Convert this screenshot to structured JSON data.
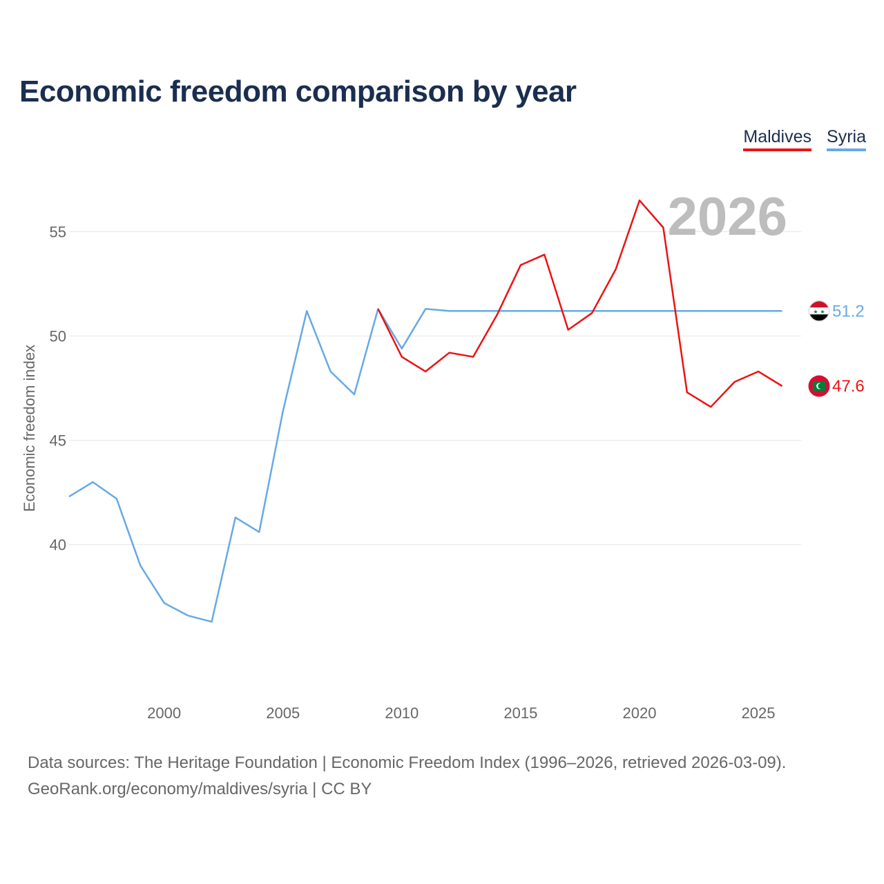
{
  "colors": {
    "maldives": "#ee1111",
    "syria": "#66a9e6",
    "grid": "#e6e6e6",
    "title": "#1a2e4f"
  },
  "title": "Economic freedom comparison by year",
  "legend": [
    {
      "label": "Maldives",
      "color": "#ee1111"
    },
    {
      "label": "Syria",
      "color": "#66a9e6"
    }
  ],
  "chart_data": {
    "type": "line",
    "title": "Economic freedom comparison by year",
    "xlabel": "",
    "ylabel": "Economic freedom index",
    "xlim": [
      1996,
      2026.8
    ],
    "ylim": [
      33,
      57.5
    ],
    "yticks": [
      40,
      45,
      50,
      55
    ],
    "xticks": [
      2000,
      2005,
      2010,
      2015,
      2020,
      2025
    ],
    "year_watermark": "2026",
    "series": [
      {
        "name": "Syria",
        "color": "#66a9e6",
        "end_label": "51.2",
        "end_value": 51.2,
        "points": [
          [
            1996,
            42.3
          ],
          [
            1997,
            43.0
          ],
          [
            1998,
            42.2
          ],
          [
            1999,
            39.0
          ],
          [
            2000,
            37.2
          ],
          [
            2001,
            36.6
          ],
          [
            2002,
            36.3
          ],
          [
            2003,
            41.3
          ],
          [
            2004,
            40.6
          ],
          [
            2005,
            46.4
          ],
          [
            2006,
            51.2
          ],
          [
            2007,
            48.3
          ],
          [
            2008,
            47.2
          ],
          [
            2009,
            51.3
          ],
          [
            2010,
            49.4
          ],
          [
            2011,
            51.3
          ],
          [
            2012,
            51.2
          ],
          [
            2026,
            51.2
          ]
        ]
      },
      {
        "name": "Maldives",
        "color": "#ee1111",
        "end_label": "47.6",
        "end_value": 47.6,
        "points": [
          [
            2009,
            51.3
          ],
          [
            2010,
            49.0
          ],
          [
            2011,
            48.3
          ],
          [
            2012,
            49.2
          ],
          [
            2013,
            49.0
          ],
          [
            2014,
            51.0
          ],
          [
            2015,
            53.4
          ],
          [
            2016,
            53.9
          ],
          [
            2017,
            50.3
          ],
          [
            2018,
            51.1
          ],
          [
            2019,
            53.2
          ],
          [
            2020,
            56.5
          ],
          [
            2021,
            55.2
          ],
          [
            2022,
            47.3
          ],
          [
            2023,
            46.6
          ],
          [
            2024,
            47.8
          ],
          [
            2025,
            48.3
          ],
          [
            2026,
            47.6
          ]
        ]
      }
    ],
    "markers": [
      {
        "series": "Syria",
        "icon": "syria-flag-icon",
        "label": "51.2"
      },
      {
        "series": "Maldives",
        "icon": "maldives-flag-icon",
        "label": "47.6"
      }
    ]
  },
  "footer": {
    "sources": "Data sources: The Heritage Foundation | Economic Freedom Index (1996–2026, retrieved 2026-03-09).",
    "attribution": "GeoRank.org/economy/maldives/syria | CC BY"
  }
}
